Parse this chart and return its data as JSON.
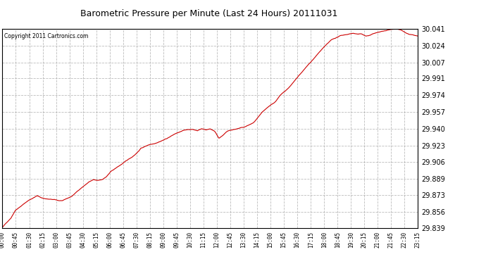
{
  "title": "Barometric Pressure per Minute (Last 24 Hours) 20111031",
  "copyright": "Copyright 2011 Cartronics.com",
  "line_color": "#cc0000",
  "background_color": "#ffffff",
  "grid_color": "#aaaaaa",
  "yticks": [
    29.839,
    29.856,
    29.873,
    29.889,
    29.906,
    29.923,
    29.94,
    29.957,
    29.974,
    29.991,
    30.007,
    30.024,
    30.041
  ],
  "ylim": [
    29.839,
    30.041
  ],
  "xtick_labels": [
    "00:00",
    "00:45",
    "01:30",
    "02:15",
    "03:00",
    "03:45",
    "04:30",
    "05:15",
    "06:00",
    "06:45",
    "07:30",
    "08:15",
    "09:00",
    "09:45",
    "10:30",
    "11:15",
    "12:00",
    "12:45",
    "13:30",
    "14:15",
    "15:00",
    "15:45",
    "16:30",
    "17:15",
    "18:00",
    "18:45",
    "19:30",
    "20:15",
    "21:00",
    "21:45",
    "22:30",
    "23:15"
  ],
  "num_points": 1440,
  "seed": 42,
  "waypoints": [
    [
      0.0,
      29.84
    ],
    [
      0.5,
      29.85
    ],
    [
      0.75,
      29.858
    ],
    [
      1.5,
      29.868
    ],
    [
      2.0,
      29.873
    ],
    [
      2.25,
      29.871
    ],
    [
      2.5,
      29.87
    ],
    [
      3.0,
      29.869
    ],
    [
      3.25,
      29.868
    ],
    [
      3.5,
      29.868
    ],
    [
      4.0,
      29.872
    ],
    [
      4.5,
      29.88
    ],
    [
      5.0,
      29.887
    ],
    [
      5.25,
      29.889
    ],
    [
      5.5,
      29.888
    ],
    [
      5.75,
      29.889
    ],
    [
      6.0,
      29.892
    ],
    [
      6.25,
      29.897
    ],
    [
      6.5,
      29.9
    ],
    [
      7.0,
      29.906
    ],
    [
      7.5,
      29.912
    ],
    [
      7.75,
      29.916
    ],
    [
      8.0,
      29.921
    ],
    [
      8.25,
      29.923
    ],
    [
      8.5,
      29.925
    ],
    [
      8.75,
      29.926
    ],
    [
      9.0,
      29.928
    ],
    [
      9.25,
      29.93
    ],
    [
      9.5,
      29.932
    ],
    [
      10.0,
      29.937
    ],
    [
      10.5,
      29.94
    ],
    [
      10.75,
      29.941
    ],
    [
      11.0,
      29.941
    ],
    [
      11.25,
      29.94
    ],
    [
      11.5,
      29.942
    ],
    [
      11.75,
      29.941
    ],
    [
      12.0,
      29.942
    ],
    [
      12.25,
      29.94
    ],
    [
      12.5,
      29.933
    ],
    [
      12.75,
      29.936
    ],
    [
      13.0,
      29.94
    ],
    [
      13.25,
      29.941
    ],
    [
      13.5,
      29.942
    ],
    [
      13.75,
      29.943
    ],
    [
      14.0,
      29.944
    ],
    [
      14.5,
      29.948
    ],
    [
      15.0,
      29.958
    ],
    [
      15.5,
      29.965
    ],
    [
      15.75,
      29.968
    ],
    [
      16.0,
      29.974
    ],
    [
      16.5,
      29.982
    ],
    [
      17.0,
      29.992
    ],
    [
      17.5,
      30.002
    ],
    [
      18.0,
      30.012
    ],
    [
      18.5,
      30.022
    ],
    [
      19.0,
      30.03
    ],
    [
      19.5,
      30.034
    ],
    [
      20.0,
      30.036
    ],
    [
      20.25,
      30.037
    ],
    [
      20.5,
      30.036
    ],
    [
      20.75,
      30.036
    ],
    [
      21.0,
      30.034
    ],
    [
      21.25,
      30.035
    ],
    [
      21.5,
      30.037
    ],
    [
      21.75,
      30.038
    ],
    [
      22.0,
      30.039
    ],
    [
      22.25,
      30.04
    ],
    [
      22.5,
      30.041
    ],
    [
      22.75,
      30.042
    ],
    [
      23.0,
      30.041
    ],
    [
      23.25,
      30.038
    ],
    [
      23.5,
      30.036
    ],
    [
      23.75,
      30.035
    ],
    [
      24.0,
      30.034
    ]
  ]
}
